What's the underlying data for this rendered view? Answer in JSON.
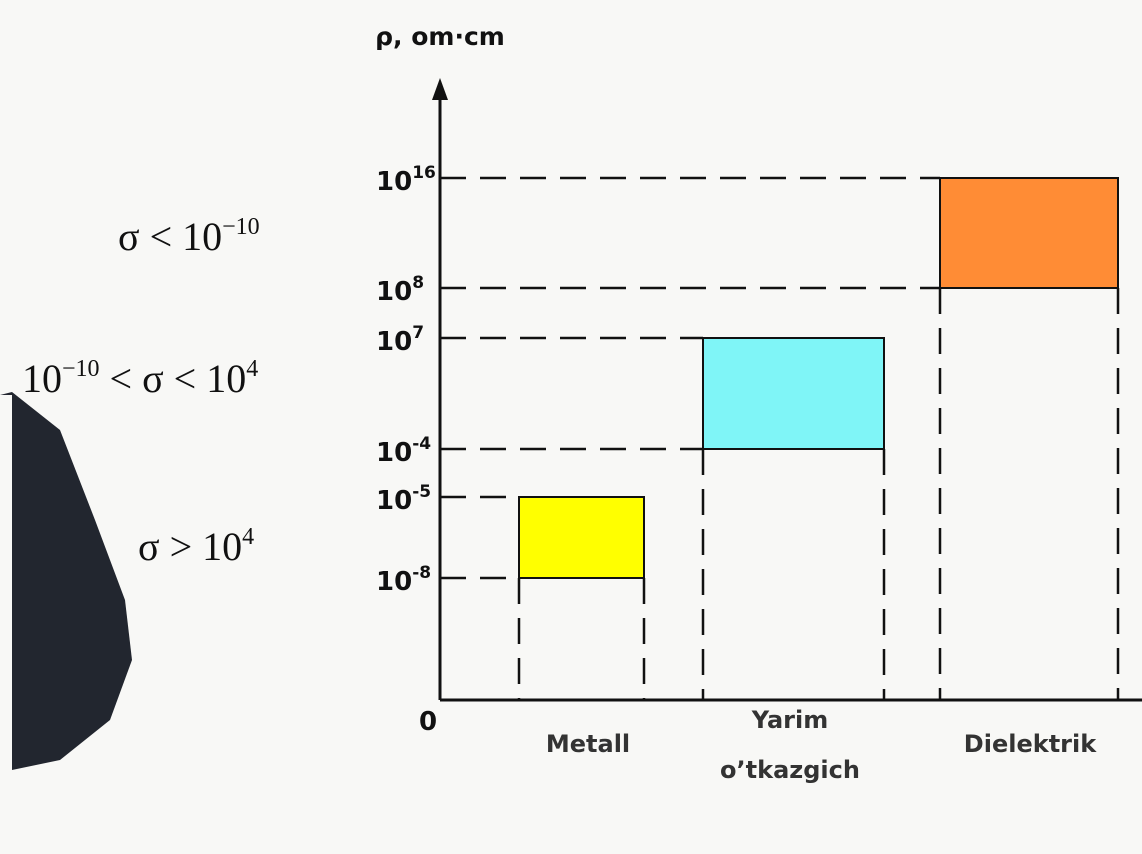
{
  "axis": {
    "y_label": "ρ, om·cm",
    "origin": "0"
  },
  "y_ticks": [
    {
      "base": "10",
      "exp": "16"
    },
    {
      "base": "10",
      "exp": "8"
    },
    {
      "base": "10",
      "exp": "7"
    },
    {
      "base": "10",
      "exp": "-4"
    },
    {
      "base": "10",
      "exp": "-5"
    },
    {
      "base": "10",
      "exp": "-8"
    }
  ],
  "conductivity_labels": [
    [
      "σ < 10",
      "−10"
    ],
    [
      "10",
      "−10",
      " < σ < 10",
      "4"
    ],
    [
      "σ > 10",
      "4"
    ]
  ],
  "categories": [
    {
      "lines": [
        "Metall"
      ]
    },
    {
      "lines": [
        "Yarim",
        "o’tkazgich"
      ]
    },
    {
      "lines": [
        "Dielektrik"
      ]
    }
  ]
}
